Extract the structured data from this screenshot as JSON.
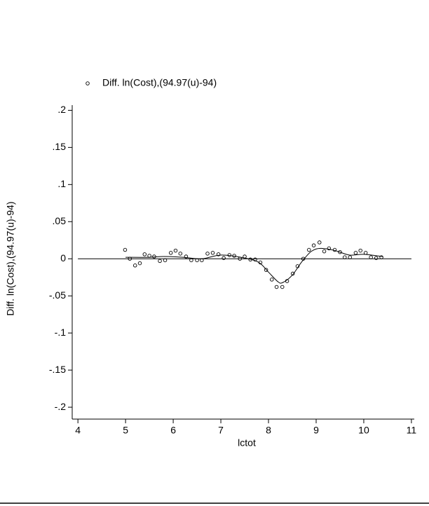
{
  "chart_data": {
    "type": "scatter",
    "xlabel": "lctot",
    "ylabel": "Diff. ln(Cost),(94.97(u)-94)",
    "xlim": [
      3.88,
      11.06
    ],
    "ylim": [
      -0.216,
      0.207
    ],
    "xticks": [
      4,
      5,
      6,
      7,
      8,
      9,
      10,
      11
    ],
    "yticks": [
      {
        "value": 0.2,
        "label": ".2"
      },
      {
        "value": 0.15,
        "label": ".15"
      },
      {
        "value": 0.1,
        "label": ".1"
      },
      {
        "value": 0.05,
        "label": ".05"
      },
      0,
      {
        "value": -0.05,
        "label": "-.05"
      },
      {
        "value": -0.1,
        "label": "-.1"
      },
      {
        "value": -0.15,
        "label": "-.15"
      },
      {
        "value": -0.2,
        "label": "-.2"
      }
    ],
    "reference_line": 0,
    "series": [
      {
        "name": "Diff. ln(Cost),(94.97(u)-94)",
        "type": "scatter",
        "color": "#000000",
        "x": [
          4.99,
          5.09,
          5.2,
          5.3,
          5.4,
          5.5,
          5.6,
          5.72,
          5.83,
          5.95,
          6.05,
          6.15,
          6.27,
          6.38,
          6.5,
          6.6,
          6.72,
          6.83,
          6.95,
          7.06,
          7.18,
          7.28,
          7.4,
          7.5,
          7.62,
          7.72,
          7.83,
          7.95,
          8.07,
          8.17,
          8.29,
          8.39,
          8.51,
          8.61,
          8.73,
          8.85,
          8.95,
          9.07,
          9.17,
          9.27,
          9.39,
          9.5,
          9.6,
          9.71,
          9.83,
          9.93,
          10.04,
          10.15,
          10.26,
          10.37
        ],
        "values": [
          0.012,
          0.0,
          -0.009,
          -0.006,
          0.006,
          0.004,
          0.003,
          -0.003,
          -0.002,
          0.008,
          0.011,
          0.007,
          0.003,
          -0.002,
          -0.002,
          -0.002,
          0.007,
          0.008,
          0.006,
          0.001,
          0.005,
          0.004,
          0.0,
          0.003,
          -0.001,
          -0.001,
          -0.005,
          -0.015,
          -0.028,
          -0.038,
          -0.038,
          -0.03,
          -0.02,
          -0.01,
          0.0,
          0.012,
          0.018,
          0.022,
          0.01,
          0.014,
          0.012,
          0.009,
          0.002,
          0.002,
          0.008,
          0.011,
          0.008,
          0.002,
          0.001,
          0.002
        ]
      },
      {
        "type": "line",
        "color": "#000000",
        "x": [
          5.0,
          5.5,
          5.8,
          6.2,
          6.6,
          7.0,
          7.5,
          7.8,
          8.0,
          8.2,
          8.3,
          8.5,
          8.7,
          8.9,
          9.1,
          9.4,
          9.7,
          10.0,
          10.4
        ],
        "values": [
          0.002,
          0.002,
          0.003,
          0.002,
          0.0,
          0.005,
          0.001,
          -0.005,
          -0.018,
          -0.031,
          -0.032,
          -0.022,
          -0.004,
          0.01,
          0.014,
          0.011,
          0.005,
          0.006,
          0.003
        ]
      }
    ]
  }
}
